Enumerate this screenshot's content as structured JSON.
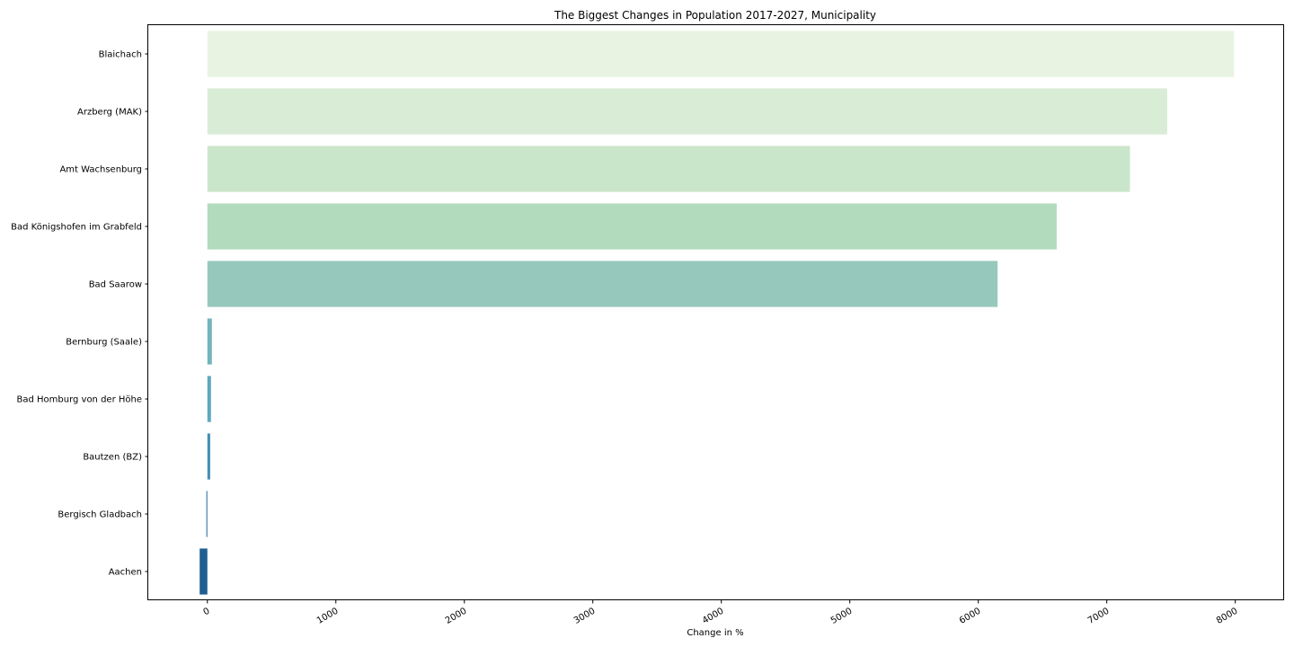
{
  "chart_data": {
    "type": "bar",
    "orientation": "horizontal",
    "title": "The Biggest Changes in Population 2017-2027, Municipality",
    "xlabel": "Change in %",
    "ylabel": "",
    "xlim": [
      -460,
      8380
    ],
    "xticks": [
      0,
      1000,
      2000,
      3000,
      4000,
      5000,
      6000,
      7000,
      8000
    ],
    "grid": false,
    "categories": [
      "Blaichach",
      "Arzberg (MAK)",
      "Amt Wachsenburg",
      "Bad Königshofen im Grabfeld",
      "Bad Saarow",
      "Bernburg (Saale)",
      "Bad Homburg von der Höhe",
      "Bautzen (BZ)",
      "Bergisch Gladbach",
      "Aachen"
    ],
    "values": [
      7990,
      7470,
      7180,
      6610,
      6150,
      35,
      28,
      22,
      -8,
      -60
    ],
    "colors": [
      "#e8f3e2",
      "#d9edd6",
      "#cae6ca",
      "#b2dabd",
      "#96c9bb",
      "#74b4bd",
      "#5da8bf",
      "#4490b3",
      "#3a7ba8",
      "#215f92"
    ]
  }
}
